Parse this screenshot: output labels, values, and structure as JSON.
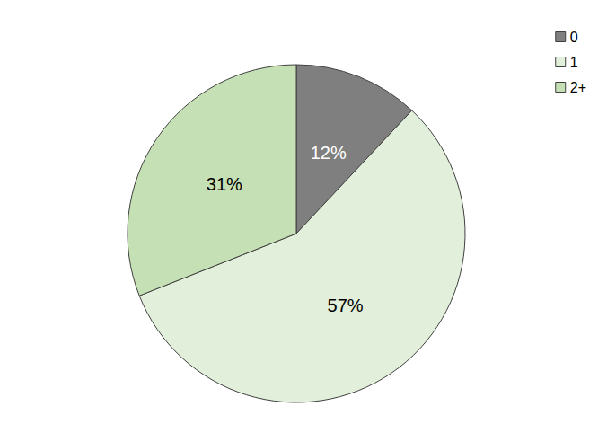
{
  "chart_data": {
    "type": "pie",
    "categories": [
      "0",
      "1",
      "2+"
    ],
    "values": [
      12,
      57,
      31
    ],
    "value_labels": [
      "12%",
      "57%",
      "31%"
    ],
    "colors": [
      "#7f7f7f",
      "#e2efda",
      "#c5e0b4"
    ],
    "data_labels": true,
    "legend": "upper right"
  }
}
